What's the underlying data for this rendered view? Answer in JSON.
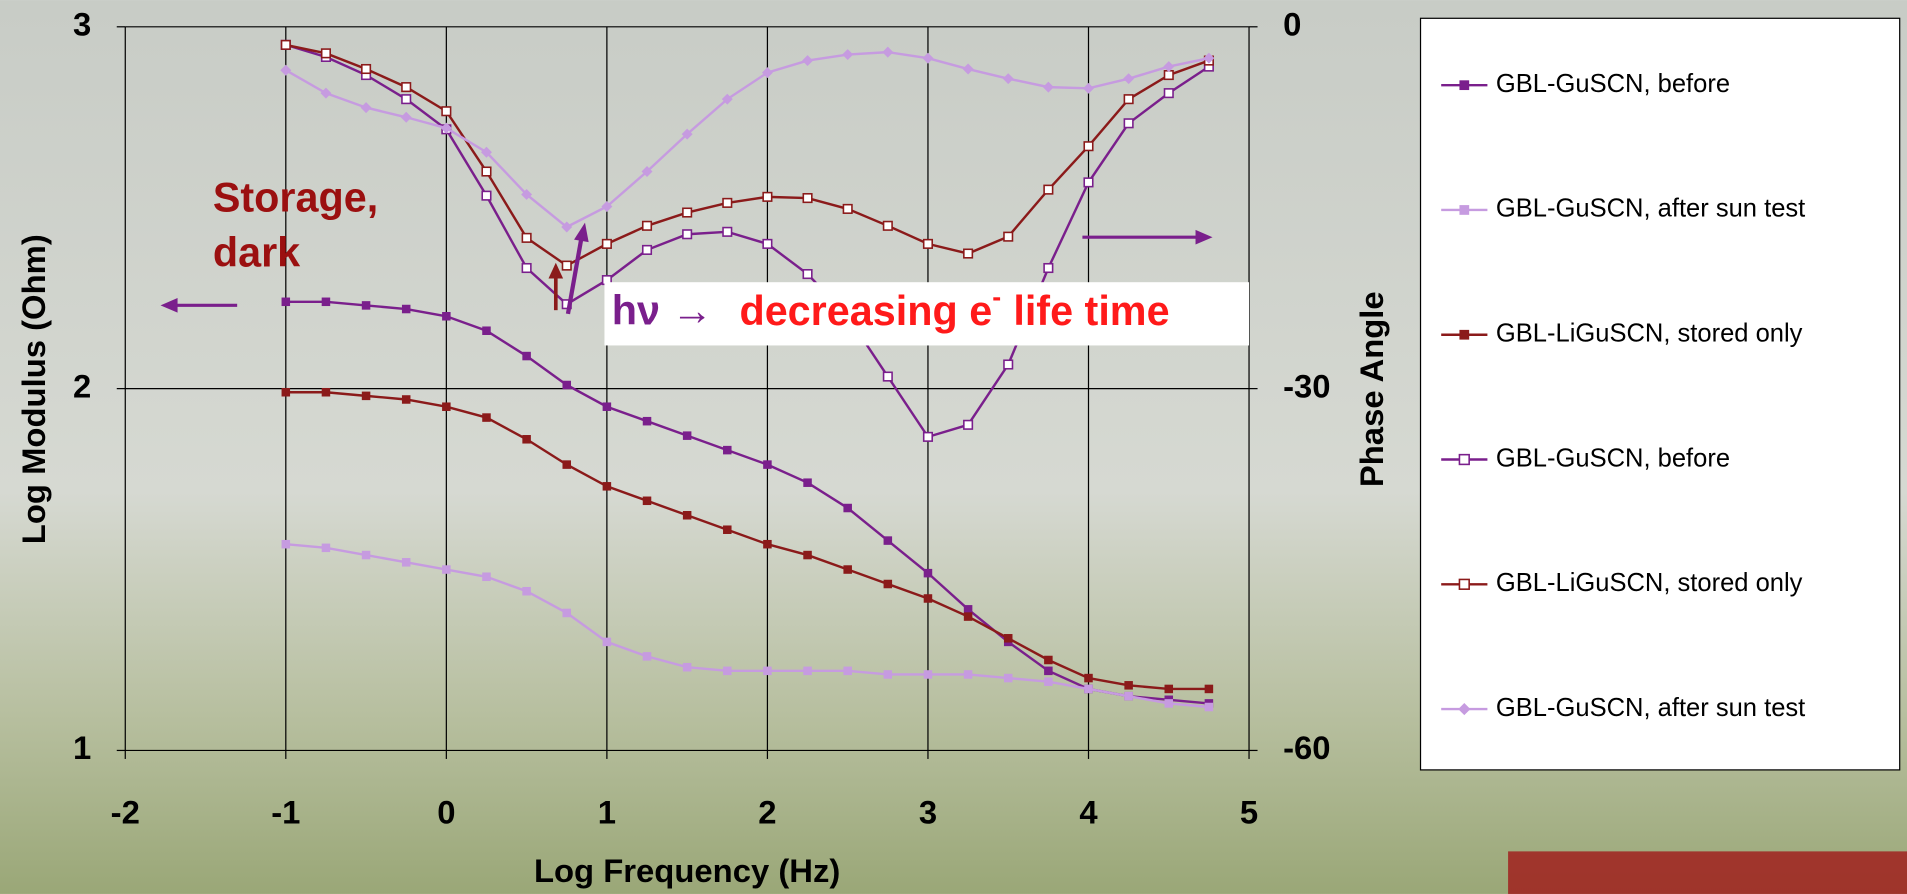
{
  "chart_data": {
    "type": "line",
    "x_label": "Log Frequency (Hz)",
    "y_label": "Log Modulus (Ohm)",
    "y2_label": "Phase Angle",
    "xlim": [
      -2,
      5
    ],
    "xticks": [
      -2,
      -1,
      0,
      1,
      2,
      3,
      4,
      5
    ],
    "ylim": [
      1,
      3
    ],
    "yticks": [
      1,
      2,
      3
    ],
    "y2lim": [
      -60,
      0
    ],
    "y2ticks": [
      -60,
      -30,
      0
    ],
    "grid": true,
    "legend": "right",
    "x": [
      -1,
      -0.75,
      -0.5,
      -0.25,
      0,
      0.25,
      0.5,
      0.75,
      1,
      1.25,
      1.5,
      1.75,
      2,
      2.25,
      2.5,
      2.75,
      3,
      3.25,
      3.5,
      3.75,
      4,
      4.25,
      4.5,
      4.75
    ],
    "series": [
      {
        "name": "GBL-GuSCN, before",
        "color": "#7a1f8c",
        "marker": "square",
        "values": [
          2.24,
          2.24,
          2.23,
          2.22,
          2.2,
          2.16,
          2.09,
          2.01,
          1.95,
          1.91,
          1.87,
          1.83,
          1.79,
          1.74,
          1.67,
          1.58,
          1.49,
          1.39,
          1.3,
          1.22,
          1.17,
          1.15,
          1.14,
          1.13
        ]
      },
      {
        "name": "GBL-GuSCN, after sun test",
        "color": "#c69be0",
        "marker": "square",
        "values": [
          1.57,
          1.56,
          1.54,
          1.52,
          1.5,
          1.48,
          1.44,
          1.38,
          1.3,
          1.26,
          1.23,
          1.22,
          1.22,
          1.22,
          1.22,
          1.21,
          1.21,
          1.21,
          1.2,
          1.19,
          1.17,
          1.15,
          1.13,
          1.12
        ]
      },
      {
        "name": "GBL-LiGuSCN, stored only",
        "color": "#8b1a1a",
        "marker": "square",
        "values": [
          1.99,
          1.99,
          1.98,
          1.97,
          1.95,
          1.92,
          1.86,
          1.79,
          1.73,
          1.69,
          1.65,
          1.61,
          1.57,
          1.54,
          1.5,
          1.46,
          1.42,
          1.37,
          1.31,
          1.25,
          1.2,
          1.18,
          1.17,
          1.17
        ]
      },
      {
        "name": "GBL-GuSCN, before",
        "color": "#7a1f8c",
        "marker": "open-square",
        "axis": "y2",
        "values": [
          -1.5,
          -2.5,
          -4,
          -6,
          -8.5,
          -14,
          -20,
          -23,
          -21,
          -18.5,
          -17.2,
          -17,
          -18,
          -20.5,
          -24,
          -29,
          -34,
          -33,
          -28,
          -20,
          -12.9,
          -8,
          -5.5,
          -3.3
        ]
      },
      {
        "name": "GBL-LiGuSCN, stored only",
        "color": "#8b1a1a",
        "marker": "open-square",
        "axis": "y2",
        "values": [
          -1.5,
          -2.2,
          -3.5,
          -5,
          -7,
          -12,
          -17.5,
          -19.8,
          -18,
          -16.5,
          -15.4,
          -14.6,
          -14.1,
          -14.2,
          -15.1,
          -16.5,
          -18,
          -18.8,
          -17.4,
          -13.5,
          -9.9,
          -6,
          -4,
          -2.8
        ]
      },
      {
        "name": "GBL-GuSCN, after sun test",
        "color": "#c69be0",
        "marker": "diamond",
        "axis": "y2",
        "values": [
          -3.6,
          -5.5,
          -6.7,
          -7.5,
          -8.4,
          -10.4,
          -13.9,
          -16.6,
          -14.9,
          -12,
          -8.9,
          -6,
          -3.8,
          -2.8,
          -2.3,
          -2.1,
          -2.6,
          -3.5,
          -4.3,
          -5,
          -5.1,
          -4.3,
          -3.3,
          -2.6
        ]
      }
    ],
    "storage_label": [
      "Storage,",
      "dark"
    ],
    "life_label": [
      "hν →",
      "decreasing e",
      "-",
      "life time"
    ]
  }
}
